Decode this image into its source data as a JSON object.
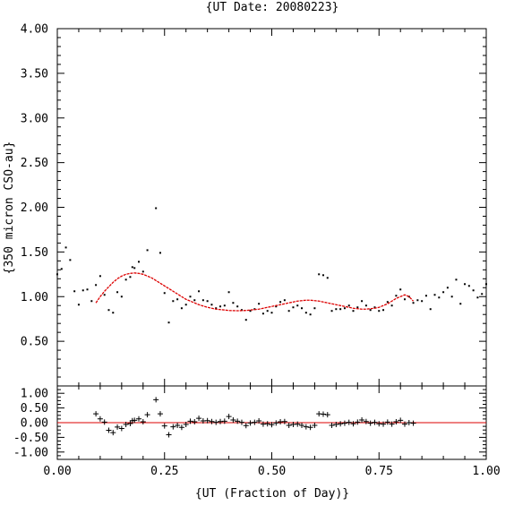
{
  "chart_data": [
    {
      "type": "scatter",
      "panel": "main",
      "title": "{UT Date: 20080223}",
      "ylabel": "{350 micron CSO-au}",
      "xlabel": "",
      "xlim": [
        0,
        1
      ],
      "ylim": [
        0,
        4
      ],
      "x_ticks": [
        "0.00",
        "0.25",
        "0.50",
        "0.75",
        "1.00"
      ],
      "y_ticks": [
        "0.50",
        "1.00",
        "1.50",
        "2.00",
        "2.50",
        "3.00",
        "3.50",
        "4.00"
      ],
      "grid": false,
      "colors": {
        "points": "#000000",
        "fit": "#dd0000"
      },
      "series": [
        {
          "kind": "points",
          "x": [
            0.0,
            0.01,
            0.02,
            0.03,
            0.04,
            0.05,
            0.06,
            0.07,
            0.08,
            0.09,
            0.1,
            0.11,
            0.12,
            0.13,
            0.14,
            0.15,
            0.16,
            0.17,
            0.175,
            0.18,
            0.19,
            0.2,
            0.21,
            0.23,
            0.24,
            0.25,
            0.26,
            0.27,
            0.28,
            0.29,
            0.3,
            0.31,
            0.32,
            0.33,
            0.34,
            0.35,
            0.36,
            0.37,
            0.38,
            0.39,
            0.4,
            0.41,
            0.42,
            0.43,
            0.44,
            0.45,
            0.46,
            0.47,
            0.48,
            0.49,
            0.5,
            0.51,
            0.52,
            0.53,
            0.54,
            0.55,
            0.56,
            0.57,
            0.58,
            0.59,
            0.6,
            0.61,
            0.62,
            0.63,
            0.64,
            0.65,
            0.66,
            0.67,
            0.68,
            0.69,
            0.7,
            0.71,
            0.72,
            0.73,
            0.74,
            0.75,
            0.76,
            0.77,
            0.78,
            0.79,
            0.8,
            0.81,
            0.82,
            0.83,
            0.84,
            0.85,
            0.86,
            0.87,
            0.88,
            0.89,
            0.9,
            0.91,
            0.92,
            0.93,
            0.94,
            0.95,
            0.96,
            0.97,
            0.98,
            0.99,
            1.0
          ],
          "y": [
            1.25,
            1.31,
            1.55,
            1.41,
            1.06,
            0.91,
            1.07,
            1.08,
            0.95,
            1.13,
            1.23,
            1.02,
            0.85,
            0.82,
            1.05,
            1.0,
            1.19,
            1.22,
            1.33,
            1.32,
            1.39,
            1.28,
            1.52,
            1.99,
            1.49,
            1.04,
            0.71,
            0.95,
            0.97,
            0.87,
            0.91,
            1.0,
            0.96,
            1.06,
            0.96,
            0.95,
            0.91,
            0.87,
            0.89,
            0.9,
            1.05,
            0.93,
            0.89,
            0.85,
            0.74,
            0.84,
            0.86,
            0.92,
            0.81,
            0.84,
            0.82,
            0.89,
            0.94,
            0.96,
            0.84,
            0.88,
            0.9,
            0.87,
            0.82,
            0.8,
            0.87,
            1.25,
            1.24,
            1.21,
            0.84,
            0.86,
            0.86,
            0.87,
            0.9,
            0.84,
            0.88,
            0.95,
            0.9,
            0.85,
            0.88,
            0.84,
            0.85,
            0.94,
            0.9,
            1.01,
            1.08,
            0.97,
            1.0,
            0.93,
            0.96,
            0.95,
            1.01,
            0.86,
            1.02,
            0.99,
            1.05,
            1.1,
            1.0,
            1.19,
            0.92,
            1.14,
            1.12,
            1.07,
            0.99,
            1.03,
            1.14
          ]
        },
        {
          "kind": "fit",
          "x": [
            0.09,
            0.1,
            0.11,
            0.12,
            0.13,
            0.14,
            0.15,
            0.16,
            0.17,
            0.18,
            0.19,
            0.2,
            0.21,
            0.22,
            0.23,
            0.24,
            0.25,
            0.26,
            0.27,
            0.28,
            0.29,
            0.3,
            0.31,
            0.32,
            0.33,
            0.34,
            0.35,
            0.36,
            0.37,
            0.38,
            0.39,
            0.4,
            0.41,
            0.42,
            0.43,
            0.44,
            0.45,
            0.46,
            0.47,
            0.48,
            0.49,
            0.5,
            0.51,
            0.52,
            0.53,
            0.54,
            0.55,
            0.56,
            0.57,
            0.58,
            0.59,
            0.6,
            0.61,
            0.62,
            0.63,
            0.64,
            0.65,
            0.66,
            0.67,
            0.68,
            0.69,
            0.7,
            0.71,
            0.72,
            0.73,
            0.74,
            0.75,
            0.76,
            0.77,
            0.78,
            0.79,
            0.8,
            0.81,
            0.82,
            0.83
          ],
          "y": [
            0.93,
            1.0,
            1.06,
            1.11,
            1.16,
            1.2,
            1.23,
            1.25,
            1.26,
            1.265,
            1.26,
            1.25,
            1.23,
            1.21,
            1.18,
            1.15,
            1.12,
            1.09,
            1.06,
            1.03,
            1.0,
            0.97,
            0.95,
            0.93,
            0.91,
            0.895,
            0.88,
            0.87,
            0.86,
            0.855,
            0.85,
            0.845,
            0.843,
            0.842,
            0.843,
            0.845,
            0.85,
            0.855,
            0.86,
            0.87,
            0.88,
            0.89,
            0.9,
            0.91,
            0.92,
            0.93,
            0.94,
            0.95,
            0.955,
            0.96,
            0.96,
            0.955,
            0.95,
            0.94,
            0.93,
            0.92,
            0.91,
            0.9,
            0.89,
            0.88,
            0.87,
            0.865,
            0.86,
            0.86,
            0.865,
            0.87,
            0.88,
            0.9,
            0.92,
            0.95,
            0.98,
            1.0,
            1.02,
            1.0,
            0.95
          ]
        }
      ]
    },
    {
      "type": "scatter",
      "panel": "residuals",
      "xlabel": "{UT (Fraction of Day)}",
      "ylabel": "",
      "xlim": [
        0,
        1
      ],
      "ylim": [
        -1.25,
        1.25
      ],
      "x_ticks": [
        "0.00",
        "0.25",
        "0.50",
        "0.75",
        "1.00"
      ],
      "y_ticks": [
        "1.00",
        "0.50",
        "0.00",
        "-0.50",
        "-1.00"
      ],
      "grid": false,
      "colors": {
        "points": "#000000",
        "zero_line": "#dd0000"
      },
      "series": [
        {
          "kind": "points",
          "x": [
            0.09,
            0.1,
            0.11,
            0.12,
            0.13,
            0.14,
            0.15,
            0.16,
            0.17,
            0.175,
            0.18,
            0.19,
            0.2,
            0.21,
            0.23,
            0.24,
            0.25,
            0.26,
            0.27,
            0.28,
            0.29,
            0.3,
            0.31,
            0.32,
            0.33,
            0.34,
            0.35,
            0.36,
            0.37,
            0.38,
            0.39,
            0.4,
            0.41,
            0.42,
            0.43,
            0.44,
            0.45,
            0.46,
            0.47,
            0.48,
            0.49,
            0.5,
            0.51,
            0.52,
            0.53,
            0.54,
            0.55,
            0.56,
            0.57,
            0.58,
            0.59,
            0.6,
            0.61,
            0.62,
            0.63,
            0.64,
            0.65,
            0.66,
            0.67,
            0.68,
            0.69,
            0.7,
            0.71,
            0.72,
            0.73,
            0.74,
            0.75,
            0.76,
            0.77,
            0.78,
            0.79,
            0.8,
            0.81,
            0.82,
            0.83
          ],
          "y": [
            0.3,
            0.13,
            0.02,
            -0.26,
            -0.34,
            -0.15,
            -0.2,
            -0.06,
            -0.03,
            0.07,
            0.08,
            0.13,
            0.03,
            0.27,
            0.78,
            0.3,
            -0.11,
            -0.41,
            -0.14,
            -0.09,
            -0.16,
            -0.06,
            0.05,
            0.03,
            0.15,
            0.06,
            0.07,
            0.04,
            0.01,
            0.04,
            0.05,
            0.21,
            0.09,
            0.05,
            0.01,
            -0.1,
            -0.01,
            0.01,
            0.06,
            -0.05,
            -0.04,
            -0.07,
            -0.01,
            0.03,
            0.04,
            -0.09,
            -0.06,
            -0.05,
            -0.09,
            -0.14,
            -0.16,
            -0.09,
            0.3,
            0.29,
            0.27,
            -0.09,
            -0.06,
            -0.04,
            -0.02,
            0.01,
            -0.04,
            0.02,
            0.09,
            0.04,
            -0.02,
            0.01,
            -0.04,
            -0.05,
            0.02,
            -0.05,
            0.03,
            0.08,
            -0.05,
            0.0,
            -0.02
          ]
        },
        {
          "kind": "zero_line",
          "x": [
            0,
            1
          ],
          "y": [
            0,
            0
          ]
        }
      ]
    }
  ]
}
